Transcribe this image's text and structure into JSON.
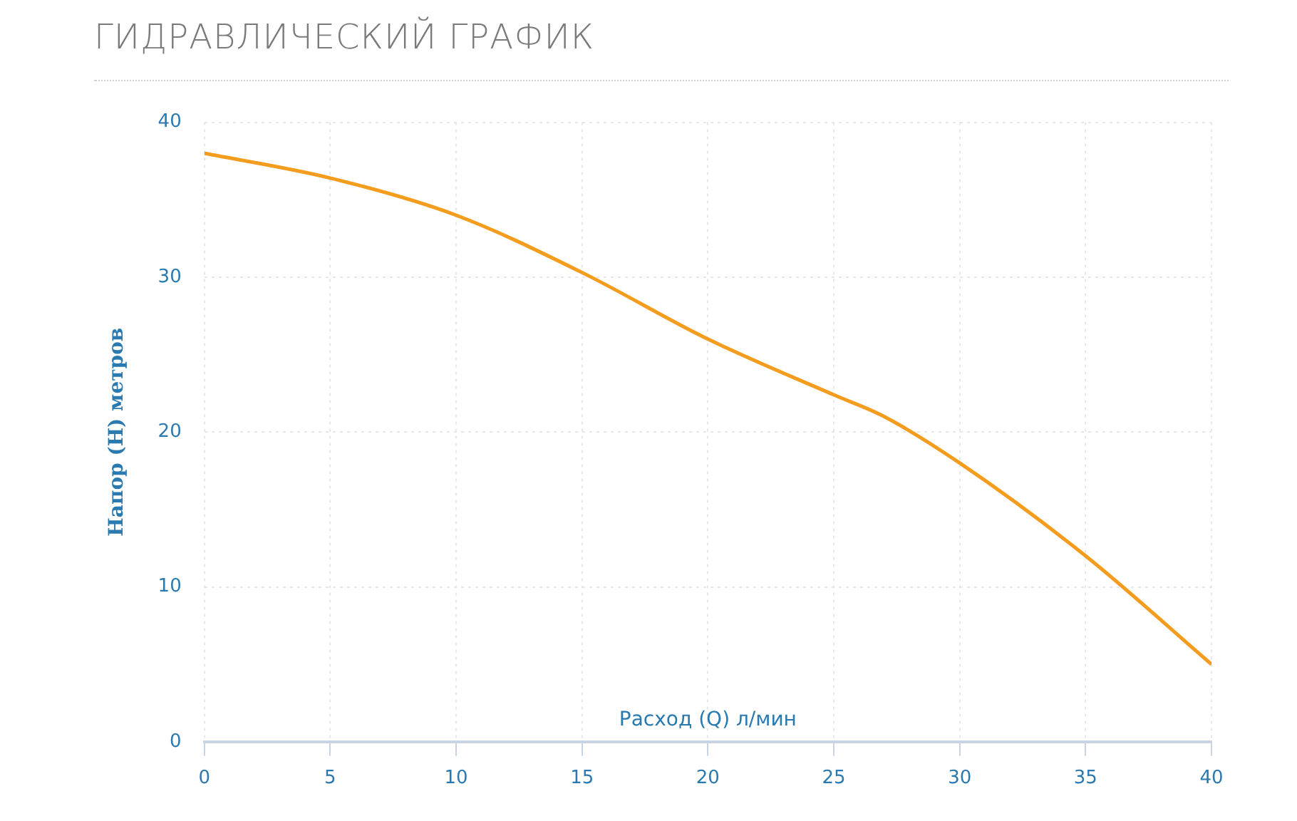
{
  "chart_data": {
    "type": "line",
    "title": "ГИДРАВЛИЧЕСКИЙ ГРАФИК",
    "xlabel": "Расход (Q) л/мин",
    "ylabel": "Напор (H) метров",
    "x": [
      0,
      5,
      10,
      15,
      20,
      25,
      27,
      30,
      35,
      40
    ],
    "series": [
      {
        "color": "#f39c1d",
        "values": [
          38,
          36.4,
          34,
          30.3,
          26,
          22.4,
          21,
          18,
          12,
          5
        ]
      }
    ],
    "xlim": [
      0,
      40
    ],
    "xticks": [
      0,
      5,
      10,
      15,
      20,
      25,
      30,
      35,
      40
    ],
    "ylim": [
      0,
      40
    ],
    "yticks": [
      0,
      10,
      20,
      30,
      40
    ],
    "grid": true,
    "legend": false,
    "marker": "none",
    "line_style": "solid"
  }
}
